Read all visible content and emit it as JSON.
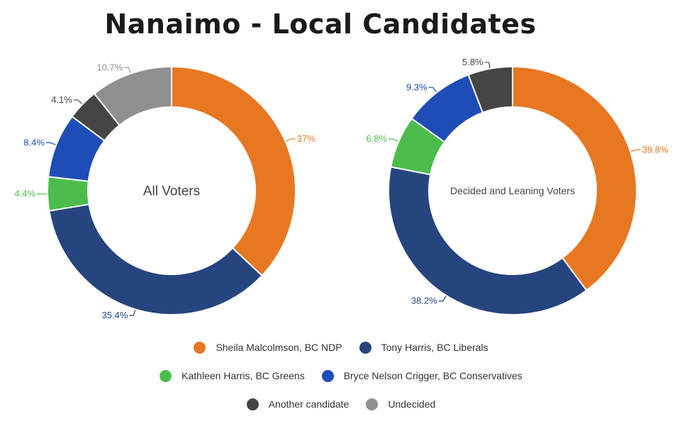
{
  "title": "Nanaimo - Local Candidates",
  "chart_data": [
    {
      "type": "donut",
      "center_label": "All Voters",
      "slices": [
        {
          "label": "Sheila Malcolmson, BC NDP",
          "value": 37,
          "display": "37%",
          "color": "#e87722"
        },
        {
          "label": "Tony Harris, BC Liberals",
          "value": 35.4,
          "display": "35.4%",
          "color": "#26457e"
        },
        {
          "label": "Kathleen Harris, BC Greens",
          "value": 4.4,
          "display": "4.4%",
          "color": "#4cbd4c"
        },
        {
          "label": "Bryce Nelson Crigger, BC Conservatives",
          "value": 8.4,
          "display": "8.4%",
          "color": "#1e4db7"
        },
        {
          "label": "Another candidate",
          "value": 4.1,
          "display": "4.1%",
          "color": "#454545"
        },
        {
          "label": "Undecided",
          "value": 10.7,
          "display": "10.7%",
          "color": "#8f8f8f"
        }
      ]
    },
    {
      "type": "donut",
      "center_label": "Decided and Leaning Voters",
      "slices": [
        {
          "label": "Sheila Malcolmson, BC NDP",
          "value": 39.8,
          "display": "39.8%",
          "color": "#e87722"
        },
        {
          "label": "Tony Harris, BC Liberals",
          "value": 38.2,
          "display": "38.2%",
          "color": "#26457e"
        },
        {
          "label": "Kathleen Harris, BC Greens",
          "value": 6.8,
          "display": "6.8%",
          "color": "#4cbd4c"
        },
        {
          "label": "Bryce Nelson Crigger, BC Conservatives",
          "value": 9.3,
          "display": "9.3%",
          "color": "#1e4db7"
        },
        {
          "label": "Another candidate",
          "value": 5.8,
          "display": "5.8%",
          "color": "#454545"
        }
      ]
    }
  ],
  "legend": {
    "rows": [
      [
        {
          "label": "Sheila Malcolmson, BC NDP",
          "color": "#e87722"
        },
        {
          "label": "Tony Harris, BC Liberals",
          "color": "#26457e"
        }
      ],
      [
        {
          "label": "Kathleen Harris, BC Greens",
          "color": "#4cbd4c"
        },
        {
          "label": "Bryce Nelson Crigger, BC Conservatives",
          "color": "#1e4db7"
        }
      ],
      [
        {
          "label": "Another candidate",
          "color": "#454545"
        },
        {
          "label": "Undecided",
          "color": "#8f8f8f"
        }
      ]
    ]
  }
}
